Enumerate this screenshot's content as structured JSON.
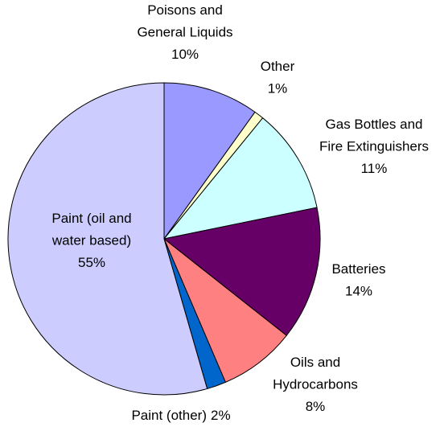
{
  "chart_data": {
    "type": "pie",
    "categories": [
      "Poisons and\nGeneral Liquids",
      "Other",
      "Gas Bottles and\nFire Extinguishers",
      "Batteries",
      "Oils and\nHydrocarbons",
      "Paint (other)",
      "Paint (oil and\nwater based)"
    ],
    "values": [
      10,
      1,
      11,
      14,
      8,
      2,
      55
    ],
    "value_labels": [
      "10%",
      "1%",
      "11%",
      "14%",
      "8%",
      "2%",
      "55%"
    ],
    "colors": [
      "#9999ff",
      "#ffffcc",
      "#ccffff",
      "#660066",
      "#ff8080",
      "#0066cc",
      "#ccccff"
    ]
  }
}
